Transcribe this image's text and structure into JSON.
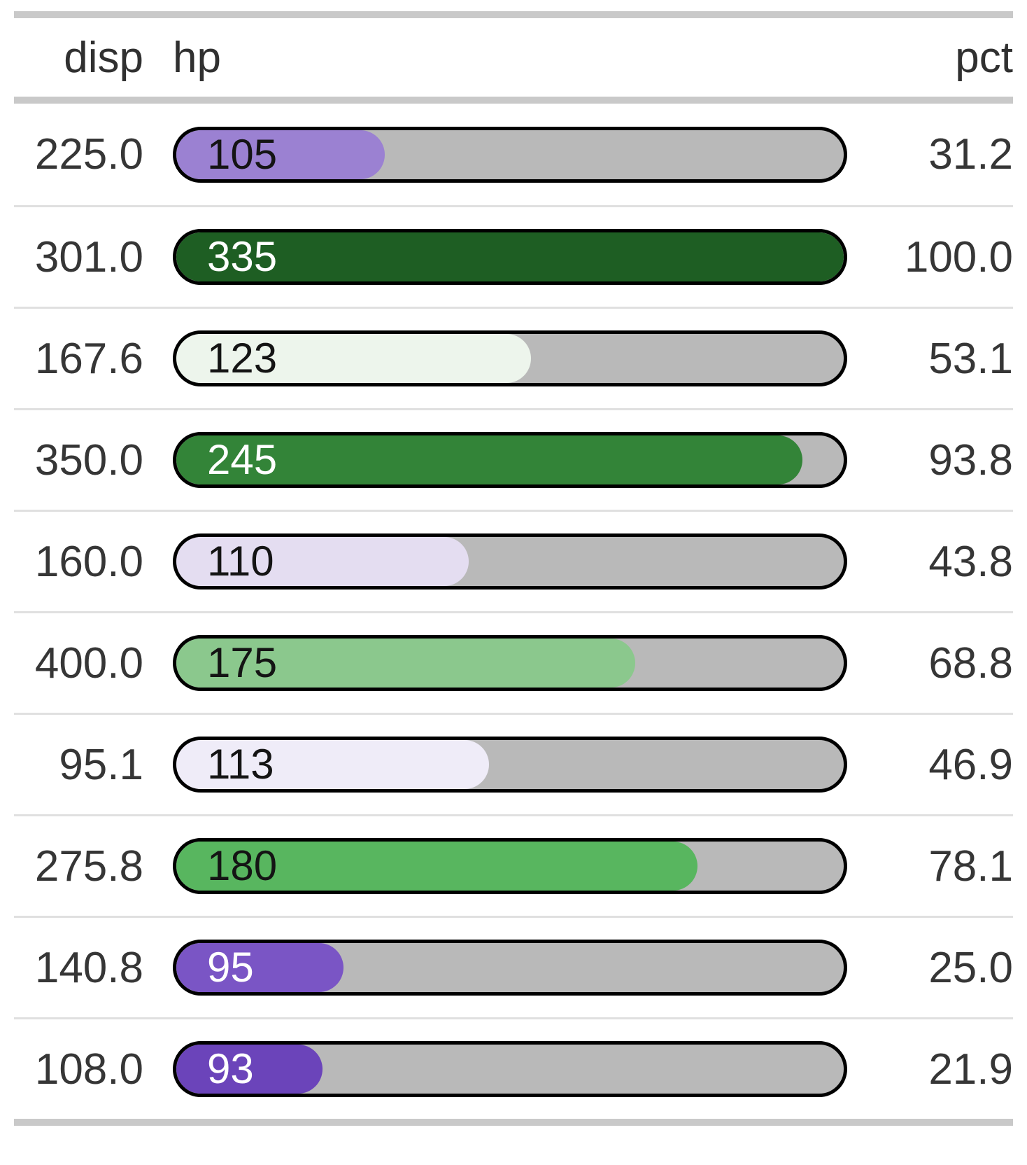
{
  "table": {
    "header": {
      "disp": "disp",
      "hp": "hp",
      "pct": "pct"
    },
    "rows": [
      {
        "disp": "225.0",
        "hp": "105",
        "pct": "31.2",
        "fill_pct": 31.2,
        "fill_color": "#9b81d2",
        "label_color": "#141414"
      },
      {
        "disp": "301.0",
        "hp": "335",
        "pct": "100.0",
        "fill_pct": 100.0,
        "fill_color": "#1e5e23",
        "label_color": "#ffffff"
      },
      {
        "disp": "167.6",
        "hp": "123",
        "pct": "53.1",
        "fill_pct": 53.1,
        "fill_color": "#edf5ec",
        "label_color": "#141414"
      },
      {
        "disp": "350.0",
        "hp": "245",
        "pct": "93.8",
        "fill_pct": 93.8,
        "fill_color": "#338438",
        "label_color": "#ffffff"
      },
      {
        "disp": "160.0",
        "hp": "110",
        "pct": "43.8",
        "fill_pct": 43.8,
        "fill_color": "#e4ddf1",
        "label_color": "#141414"
      },
      {
        "disp": "400.0",
        "hp": "175",
        "pct": "68.8",
        "fill_pct": 68.8,
        "fill_color": "#8bc88d",
        "label_color": "#141414"
      },
      {
        "disp": "95.1",
        "hp": "113",
        "pct": "46.9",
        "fill_pct": 46.9,
        "fill_color": "#efecf8",
        "label_color": "#141414"
      },
      {
        "disp": "275.8",
        "hp": "180",
        "pct": "78.1",
        "fill_pct": 78.1,
        "fill_color": "#58b65f",
        "label_color": "#141414"
      },
      {
        "disp": "140.8",
        "hp": "95",
        "pct": "25.0",
        "fill_pct": 25.0,
        "fill_color": "#7a55c5",
        "label_color": "#ffffff"
      },
      {
        "disp": "108.0",
        "hp": "93",
        "pct": "21.9",
        "fill_pct": 21.9,
        "fill_color": "#6b44ba",
        "label_color": "#ffffff"
      }
    ],
    "style": {
      "track_color": "#b9b9b9",
      "bar_border_color": "#000000",
      "thick_rule_color": "#c9c9c9",
      "row_rule_color": "#e0e0e0",
      "text_color": "#363636"
    }
  },
  "chart_data": {
    "type": "table",
    "title": "",
    "columns": [
      "disp",
      "hp",
      "pct"
    ],
    "rows": [
      {
        "disp": 225.0,
        "hp": 105,
        "pct": 31.2
      },
      {
        "disp": 301.0,
        "hp": 335,
        "pct": 100.0
      },
      {
        "disp": 167.6,
        "hp": 123,
        "pct": 53.1
      },
      {
        "disp": 350.0,
        "hp": 245,
        "pct": 93.8
      },
      {
        "disp": 160.0,
        "hp": 110,
        "pct": 43.8
      },
      {
        "disp": 400.0,
        "hp": 175,
        "pct": 68.8
      },
      {
        "disp": 95.1,
        "hp": 113,
        "pct": 46.9
      },
      {
        "disp": 275.8,
        "hp": 180,
        "pct": 78.1
      },
      {
        "disp": 140.8,
        "hp": 95,
        "pct": 25.0
      },
      {
        "disp": 108.0,
        "hp": 93,
        "pct": 21.9
      }
    ],
    "bar": {
      "column": "hp",
      "fill_fraction": [
        0.312,
        1.0,
        0.531,
        0.938,
        0.438,
        0.688,
        0.469,
        0.781,
        0.25,
        0.219
      ],
      "scale_max_hp": 335,
      "fill_colors": [
        "#9b81d2",
        "#1e5e23",
        "#edf5ec",
        "#338438",
        "#e4ddf1",
        "#8bc88d",
        "#efecf8",
        "#58b65f",
        "#7a55c5",
        "#6b44ba"
      ],
      "palette": "diverging purple (low) to green (high)",
      "track_color": "#b9b9b9"
    },
    "legend": "none",
    "grid": "horizontal row separators only"
  }
}
